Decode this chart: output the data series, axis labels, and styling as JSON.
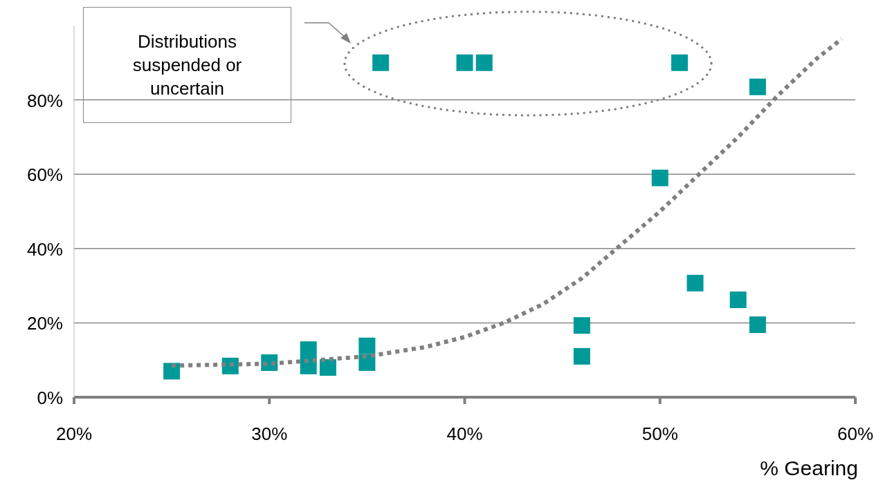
{
  "chart_data": {
    "type": "scatter",
    "xlabel": "% Gearing",
    "annotations": [
      "Distributions suspended or uncertain"
    ],
    "xlim": [
      20,
      60
    ],
    "ylim": [
      0,
      100
    ],
    "xticks": [
      {
        "value": 20,
        "label": "20%"
      },
      {
        "value": 30,
        "label": "30%"
      },
      {
        "value": 40,
        "label": "40%"
      },
      {
        "value": 50,
        "label": "50%"
      },
      {
        "value": 60,
        "label": "60%"
      }
    ],
    "yticks": [
      {
        "value": 0,
        "label": "0%"
      },
      {
        "value": 20,
        "label": "20%"
      },
      {
        "value": 40,
        "label": "40%"
      },
      {
        "value": 60,
        "label": "60%"
      },
      {
        "value": 80,
        "label": "80%"
      }
    ],
    "grid": "y",
    "marker": "square",
    "series": [
      {
        "color": "#009999",
        "x": [
          25,
          28,
          30,
          32,
          32,
          33,
          35,
          35,
          35.7,
          40,
          41,
          51,
          55,
          50,
          46,
          46,
          51.8,
          54,
          55
        ],
        "values": [
          7,
          8.4,
          9.3,
          12.8,
          8.4,
          8,
          13.8,
          9.3,
          90,
          90,
          90,
          90,
          83.5,
          59,
          19.3,
          11,
          30.7,
          26.2,
          19.5
        ]
      },
      {
        "type": "line",
        "color": "#808080",
        "line_style": "dotted",
        "marker": "none",
        "x": [
          25,
          30,
          35,
          38,
          40,
          42,
          44,
          46,
          48,
          50,
          52,
          54,
          56,
          58,
          59.3
        ],
        "values": [
          8.5,
          9,
          11,
          13.5,
          16.2,
          20,
          25,
          32,
          41,
          50,
          60,
          70,
          81,
          91,
          96.4
        ]
      }
    ]
  }
}
